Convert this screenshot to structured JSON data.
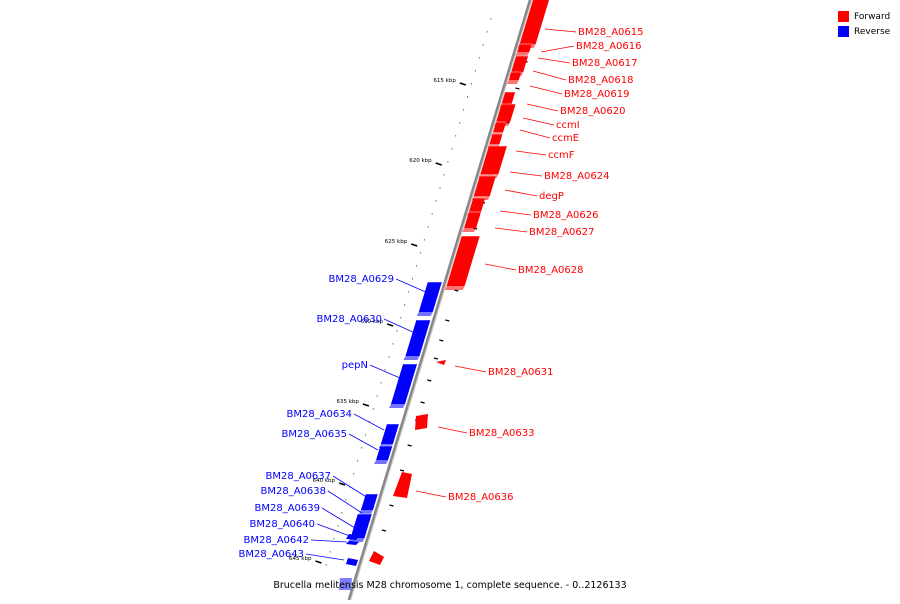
{
  "caption": "Brucella melitensis M28 chromosome 1, complete sequence. - 0..2126133",
  "legend": [
    {
      "label": "Forward",
      "color": "#ff0000"
    },
    {
      "label": "Reverse",
      "color": "#0000ff"
    }
  ],
  "colors": {
    "forward": "#ff0000",
    "reverse": "#0000ff",
    "backbone": "#888888"
  },
  "kbp_marks": [
    "615 kbp",
    "620 kbp",
    "625 kbp",
    "630 kbp",
    "635 kbp",
    "640 kbp",
    "645 kbp"
  ],
  "forward_genes": [
    "BM28_A0615",
    "BM28_A0616",
    "BM28_A0617",
    "BM28_A0618",
    "BM28_A0619",
    "BM28_A0620",
    "ccmI",
    "ccmE",
    "ccmF",
    "BM28_A0624",
    "degP",
    "BM28_A0626",
    "BM28_A0627",
    "BM28_A0628",
    "BM28_A0631",
    "BM28_A0633",
    "BM28_A0636"
  ],
  "reverse_genes": [
    "BM28_A0629",
    "BM28_A0630",
    "pepN",
    "BM28_A0634",
    "BM28_A0635",
    "BM28_A0637",
    "BM28_A0638",
    "BM28_A0639",
    "BM28_A0640",
    "BM28_A0642",
    "BM28_A0643"
  ]
}
